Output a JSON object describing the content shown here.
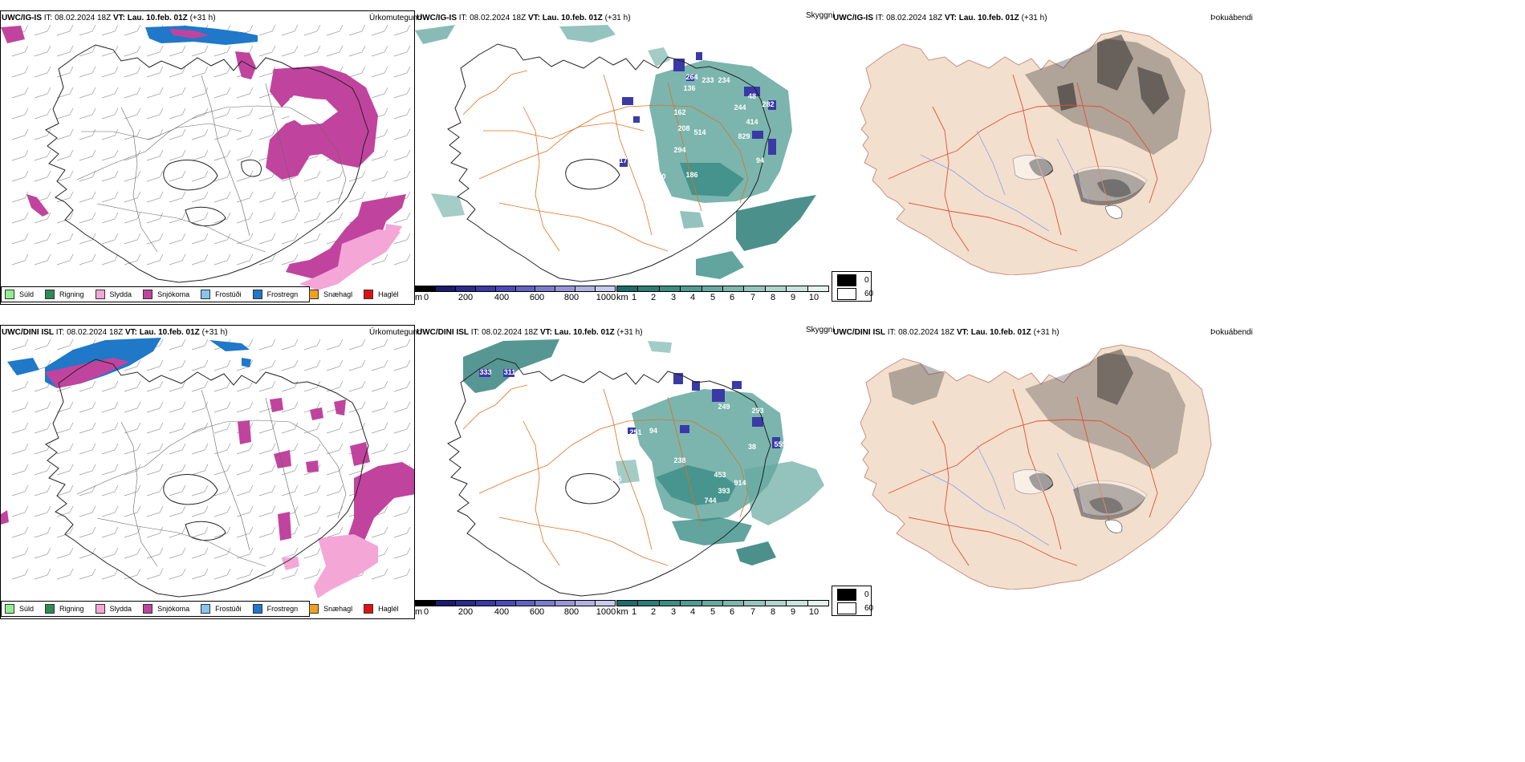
{
  "rows": [
    {
      "model": "UWC/IG-IS",
      "it_label": "IT:",
      "it_value": "08.02.2024 18Z",
      "vt_label": "VT:",
      "vt_value": "Lau. 10.feb. 01Z",
      "lead": "(+31 h)"
    },
    {
      "model": "UWC/DINI ISL",
      "it_label": "IT:",
      "it_value": "08.02.2024 18Z",
      "vt_label": "VT:",
      "vt_value": "Lau. 10.feb. 01Z",
      "lead": "(+31 h)"
    }
  ],
  "variables": {
    "precip": "Úrkomutegund",
    "visibility": "Skyggni",
    "fog": "Þokuábendi"
  },
  "precip_legend": [
    {
      "label": "Súld",
      "color": "#90ee90"
    },
    {
      "label": "Rigning",
      "color": "#2e8b57"
    },
    {
      "label": "Slydda",
      "color": "#f4a6d6"
    },
    {
      "label": "Snjókoma",
      "color": "#c0449e"
    },
    {
      "label": "Frostúði",
      "color": "#87c4f0"
    },
    {
      "label": "Frostregn",
      "color": "#1f78c8"
    },
    {
      "label": "Snæhagl",
      "color": "#f0a020"
    },
    {
      "label": "Haglél",
      "color": "#e21010"
    }
  ],
  "height_bar": {
    "unit": "m",
    "ticks": [
      "0",
      "200",
      "400",
      "600",
      "800",
      "1000"
    ],
    "colors": [
      "#000000",
      "#1b1b6e",
      "#2b2b8e",
      "#3a3aa6",
      "#4b4bb8",
      "#6262c4",
      "#7c7cce",
      "#9797d8",
      "#b1b1e2",
      "#cacaec"
    ]
  },
  "vis_bar": {
    "unit": "km",
    "ticks": [
      "1",
      "2",
      "3",
      "4",
      "5",
      "6",
      "7",
      "8",
      "9",
      "10"
    ],
    "colors": [
      "#1f6b6b",
      "#2d7d78",
      "#3b8d86",
      "#4f9c93",
      "#65aaa0",
      "#7cb8ae",
      "#95c6bd",
      "#afd5cd",
      "#c9e4dd",
      "#e4f2ee"
    ]
  },
  "fog_legend": [
    {
      "label": "0",
      "color": "#000000"
    },
    {
      "label": "60",
      "color": "#ffffff"
    }
  ],
  "vis_values": [
    [
      "264",
      "233",
      "234",
      "136",
      "48",
      "282",
      "162",
      "244",
      "414",
      "208",
      "514",
      "829",
      "294",
      "177",
      "310",
      "186",
      "94"
    ],
    [
      "333",
      "311",
      "251",
      "94",
      "238",
      "453",
      "914",
      "393",
      "744",
      "205",
      "293",
      "249",
      "555",
      "38"
    ]
  ]
}
